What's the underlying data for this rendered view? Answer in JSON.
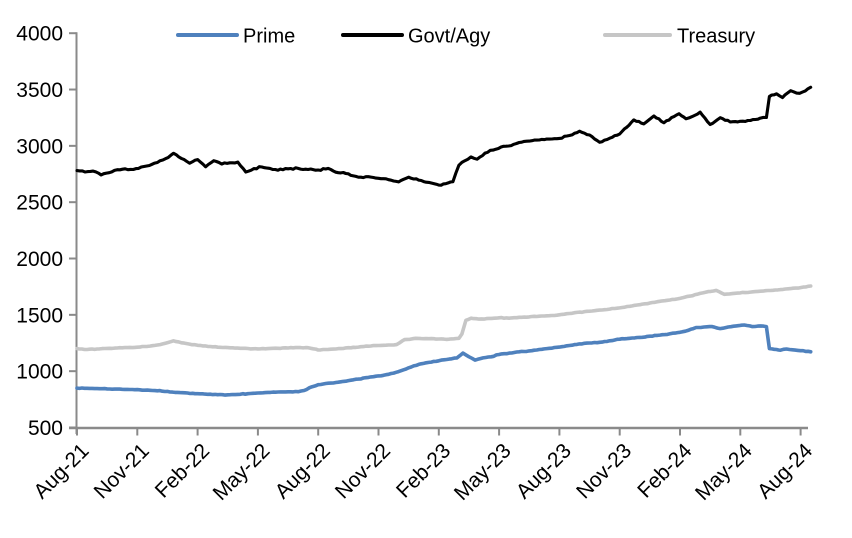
{
  "chart_data": {
    "type": "line",
    "title": "",
    "x_axis": {
      "unit": "months",
      "tick_interval_months": 3,
      "range_months": [
        0,
        36.5
      ],
      "tick_labels": [
        "Aug-21",
        "Nov-21",
        "Feb-22",
        "May-22",
        "Aug-22",
        "Nov-22",
        "Feb-23",
        "May-23",
        "Aug-23",
        "Nov-23",
        "Feb-24",
        "May-24",
        "Aug-24"
      ]
    },
    "y_axis": {
      "min": 500,
      "max": 4000,
      "tick_step": 500,
      "tick_labels": [
        "500",
        "1000",
        "1500",
        "2000",
        "2500",
        "3000",
        "3500",
        "4000"
      ]
    },
    "legend": {
      "position": "top",
      "entries": [
        "Prime",
        "Govt/Agy",
        "Treasury"
      ]
    },
    "grid": "off",
    "series": [
      {
        "name": "Prime",
        "color": "#4F81BD",
        "points": [
          [
            0,
            850
          ],
          [
            0.5,
            848
          ],
          [
            1,
            845
          ],
          [
            1.5,
            843
          ],
          [
            2,
            841
          ],
          [
            2.5,
            838
          ],
          [
            3,
            836
          ],
          [
            3.5,
            832
          ],
          [
            4,
            826
          ],
          [
            4.5,
            820
          ],
          [
            5,
            812
          ],
          [
            5.5,
            806
          ],
          [
            6,
            800
          ],
          [
            6.5,
            795
          ],
          [
            7,
            791
          ],
          [
            7.5,
            790
          ],
          [
            8,
            794
          ],
          [
            8.5,
            800
          ],
          [
            9,
            806
          ],
          [
            9.5,
            812
          ],
          [
            10,
            815
          ],
          [
            10.5,
            817
          ],
          [
            11,
            818
          ],
          [
            11.3,
            828
          ],
          [
            11.7,
            862
          ],
          [
            12,
            880
          ],
          [
            12.5,
            893
          ],
          [
            13,
            902
          ],
          [
            13.5,
            916
          ],
          [
            14,
            930
          ],
          [
            14.5,
            945
          ],
          [
            15,
            958
          ],
          [
            15.5,
            972
          ],
          [
            16,
            996
          ],
          [
            16.5,
            1030
          ],
          [
            17,
            1060
          ],
          [
            17.5,
            1078
          ],
          [
            18,
            1092
          ],
          [
            18.9,
            1118
          ],
          [
            19.2,
            1160
          ],
          [
            19.5,
            1128
          ],
          [
            19.8,
            1098
          ],
          [
            20.2,
            1118
          ],
          [
            20.6,
            1128
          ],
          [
            21,
            1148
          ],
          [
            21.5,
            1160
          ],
          [
            22,
            1172
          ],
          [
            22.5,
            1180
          ],
          [
            23,
            1192
          ],
          [
            23.5,
            1203
          ],
          [
            24,
            1214
          ],
          [
            24.5,
            1228
          ],
          [
            25,
            1242
          ],
          [
            25.5,
            1250
          ],
          [
            26,
            1256
          ],
          [
            26.5,
            1270
          ],
          [
            27,
            1284
          ],
          [
            27.5,
            1292
          ],
          [
            28,
            1300
          ],
          [
            28.5,
            1310
          ],
          [
            29,
            1320
          ],
          [
            29.5,
            1332
          ],
          [
            30,
            1345
          ],
          [
            30.4,
            1362
          ],
          [
            30.8,
            1388
          ],
          [
            31.2,
            1392
          ],
          [
            31.6,
            1396
          ],
          [
            32,
            1378
          ],
          [
            32.4,
            1392
          ],
          [
            32.8,
            1402
          ],
          [
            33.2,
            1410
          ],
          [
            33.6,
            1396
          ],
          [
            34,
            1402
          ],
          [
            34.3,
            1396
          ],
          [
            34.45,
            1200
          ],
          [
            34.8,
            1192
          ],
          [
            35,
            1186
          ],
          [
            35.3,
            1197
          ],
          [
            35.6,
            1190
          ],
          [
            36,
            1182
          ],
          [
            36.5,
            1172
          ]
        ]
      },
      {
        "name": "Govt/Agy",
        "color": "#000000",
        "points": [
          [
            0,
            2780
          ],
          [
            0.4,
            2768
          ],
          [
            0.8,
            2776
          ],
          [
            1.2,
            2742
          ],
          [
            1.6,
            2762
          ],
          [
            2,
            2788
          ],
          [
            2.4,
            2796
          ],
          [
            2.8,
            2790
          ],
          [
            3.2,
            2812
          ],
          [
            3.6,
            2826
          ],
          [
            4,
            2852
          ],
          [
            4.4,
            2886
          ],
          [
            4.8,
            2934
          ],
          [
            5.2,
            2888
          ],
          [
            5.6,
            2846
          ],
          [
            6,
            2878
          ],
          [
            6.4,
            2814
          ],
          [
            6.8,
            2868
          ],
          [
            7.2,
            2838
          ],
          [
            7.6,
            2850
          ],
          [
            8,
            2856
          ],
          [
            8.4,
            2768
          ],
          [
            8.8,
            2798
          ],
          [
            9.2,
            2812
          ],
          [
            9.6,
            2800
          ],
          [
            10,
            2784
          ],
          [
            10.5,
            2796
          ],
          [
            11,
            2800
          ],
          [
            11.5,
            2790
          ],
          [
            12,
            2786
          ],
          [
            12.5,
            2800
          ],
          [
            13,
            2762
          ],
          [
            13.5,
            2752
          ],
          [
            14,
            2722
          ],
          [
            14.5,
            2726
          ],
          [
            15,
            2712
          ],
          [
            15.5,
            2700
          ],
          [
            16,
            2680
          ],
          [
            16.5,
            2722
          ],
          [
            17,
            2696
          ],
          [
            17.5,
            2676
          ],
          [
            18,
            2652
          ],
          [
            18.35,
            2664
          ],
          [
            18.7,
            2682
          ],
          [
            19,
            2828
          ],
          [
            19.3,
            2868
          ],
          [
            19.6,
            2902
          ],
          [
            19.9,
            2882
          ],
          [
            20.3,
            2936
          ],
          [
            20.7,
            2962
          ],
          [
            21.1,
            2990
          ],
          [
            21.6,
            3002
          ],
          [
            22,
            3030
          ],
          [
            22.5,
            3042
          ],
          [
            23,
            3052
          ],
          [
            23.5,
            3060
          ],
          [
            24,
            3066
          ],
          [
            24.5,
            3092
          ],
          [
            25,
            3130
          ],
          [
            25.5,
            3096
          ],
          [
            26,
            3032
          ],
          [
            26.5,
            3068
          ],
          [
            27,
            3105
          ],
          [
            27.7,
            3230
          ],
          [
            28.2,
            3195
          ],
          [
            28.7,
            3265
          ],
          [
            29.2,
            3205
          ],
          [
            29.7,
            3260
          ],
          [
            29.95,
            3285
          ],
          [
            30.3,
            3240
          ],
          [
            30.6,
            3260
          ],
          [
            31,
            3300
          ],
          [
            31.5,
            3190
          ],
          [
            32,
            3250
          ],
          [
            32.5,
            3212
          ],
          [
            33,
            3218
          ],
          [
            33.5,
            3225
          ],
          [
            34,
            3246
          ],
          [
            34.3,
            3252
          ],
          [
            34.45,
            3438
          ],
          [
            34.8,
            3462
          ],
          [
            35.1,
            3428
          ],
          [
            35.5,
            3490
          ],
          [
            35.8,
            3468
          ],
          [
            36.1,
            3478
          ],
          [
            36.5,
            3520
          ]
        ]
      },
      {
        "name": "Treasury",
        "color": "#C6C6C6",
        "points": [
          [
            0,
            1200
          ],
          [
            0.5,
            1192
          ],
          [
            1,
            1197
          ],
          [
            1.5,
            1202
          ],
          [
            2,
            1206
          ],
          [
            2.5,
            1209
          ],
          [
            3,
            1213
          ],
          [
            3.5,
            1220
          ],
          [
            4,
            1232
          ],
          [
            4.4,
            1248
          ],
          [
            4.8,
            1270
          ],
          [
            5.2,
            1252
          ],
          [
            5.6,
            1240
          ],
          [
            6,
            1230
          ],
          [
            6.5,
            1220
          ],
          [
            7,
            1213
          ],
          [
            7.5,
            1209
          ],
          [
            8,
            1205
          ],
          [
            8.5,
            1201
          ],
          [
            9,
            1198
          ],
          [
            9.5,
            1200
          ],
          [
            10,
            1203
          ],
          [
            10.5,
            1206
          ],
          [
            11,
            1209
          ],
          [
            11.5,
            1208
          ],
          [
            12,
            1188
          ],
          [
            12.5,
            1193
          ],
          [
            13,
            1200
          ],
          [
            13.5,
            1208
          ],
          [
            14,
            1214
          ],
          [
            14.5,
            1222
          ],
          [
            15,
            1228
          ],
          [
            15.5,
            1232
          ],
          [
            15.9,
            1236
          ],
          [
            16.3,
            1280
          ],
          [
            16.7,
            1288
          ],
          [
            17,
            1291
          ],
          [
            17.5,
            1288
          ],
          [
            18,
            1286
          ],
          [
            18.5,
            1284
          ],
          [
            19,
            1292
          ],
          [
            19.15,
            1330
          ],
          [
            19.35,
            1452
          ],
          [
            19.6,
            1470
          ],
          [
            20,
            1462
          ],
          [
            20.5,
            1468
          ],
          [
            21,
            1474
          ],
          [
            21.5,
            1470
          ],
          [
            22,
            1478
          ],
          [
            22.5,
            1482
          ],
          [
            23,
            1488
          ],
          [
            23.5,
            1492
          ],
          [
            24,
            1500
          ],
          [
            24.5,
            1512
          ],
          [
            25,
            1524
          ],
          [
            25.5,
            1532
          ],
          [
            26,
            1542
          ],
          [
            26.5,
            1551
          ],
          [
            27,
            1562
          ],
          [
            27.5,
            1576
          ],
          [
            28,
            1590
          ],
          [
            28.5,
            1605
          ],
          [
            29,
            1620
          ],
          [
            29.5,
            1632
          ],
          [
            30,
            1646
          ],
          [
            30.5,
            1666
          ],
          [
            31,
            1690
          ],
          [
            31.4,
            1706
          ],
          [
            31.8,
            1717
          ],
          [
            32.2,
            1682
          ],
          [
            32.6,
            1689
          ],
          [
            33,
            1695
          ],
          [
            33.5,
            1702
          ],
          [
            34,
            1710
          ],
          [
            34.5,
            1716
          ],
          [
            35,
            1724
          ],
          [
            35.5,
            1733
          ],
          [
            36,
            1742
          ],
          [
            36.5,
            1756
          ]
        ]
      }
    ]
  },
  "colors": {
    "axis": "#8A8A8A",
    "text": "#000000",
    "background": "#FFFFFF",
    "prime": "#4F81BD",
    "govt_agy": "#000000",
    "treasury": "#C6C6C6"
  }
}
